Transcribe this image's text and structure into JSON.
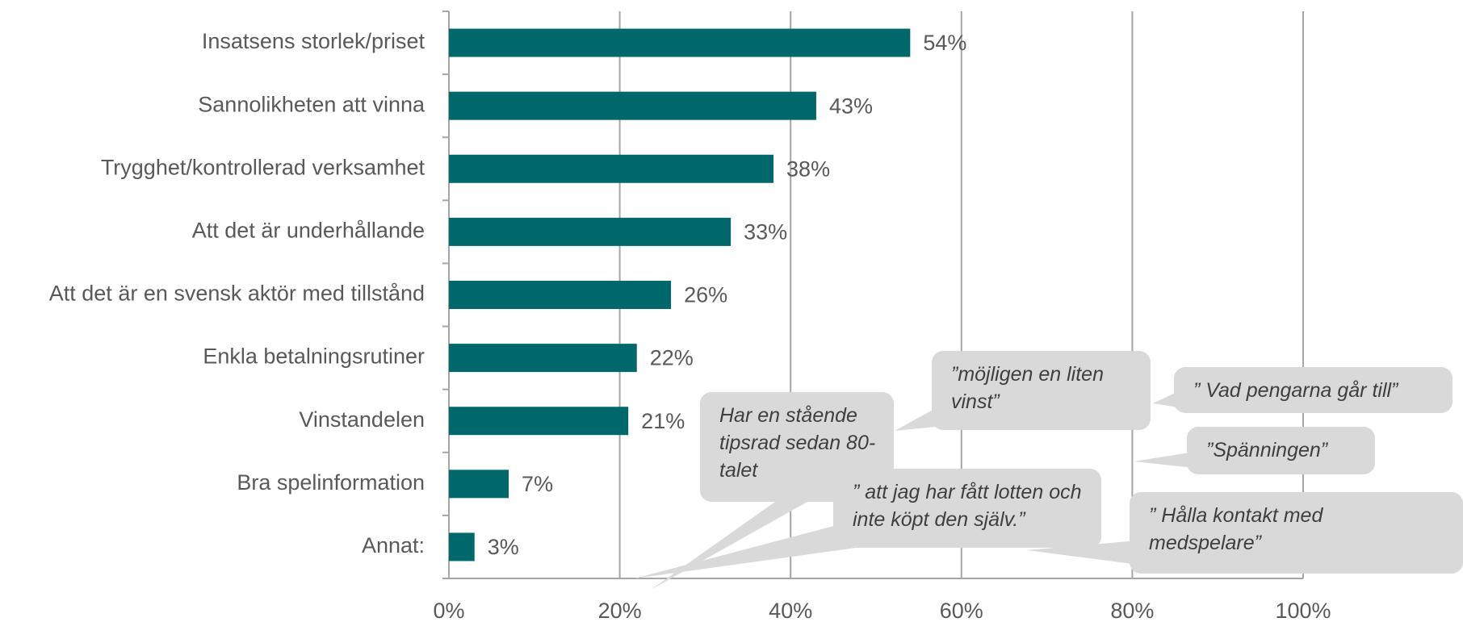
{
  "chart_data": {
    "type": "bar",
    "orientation": "horizontal",
    "categories": [
      "Insatsens storlek/priset",
      "Sannolikheten att vinna",
      "Trygghet/kontrollerad verksamhet",
      "Att det är underhållande",
      "Att det är en svensk aktör med tillstånd",
      "Enkla betalningsrutiner",
      "Vinstandelen",
      "Bra spelinformation",
      "Annat:"
    ],
    "values": [
      54,
      43,
      38,
      33,
      26,
      22,
      21,
      7,
      3
    ],
    "value_labels": [
      "54%",
      "43%",
      "38%",
      "33%",
      "26%",
      "22%",
      "21%",
      "7%",
      "3%"
    ],
    "color": "#00686a",
    "xlim": [
      0,
      100
    ],
    "xticks": [
      {
        "value": 0,
        "label": "0%"
      },
      {
        "value": 20,
        "label": "20%"
      },
      {
        "value": 40,
        "label": "40%"
      },
      {
        "value": 60,
        "label": "60%"
      },
      {
        "value": 80,
        "label": "80%"
      },
      {
        "value": 100,
        "label": "100%"
      }
    ],
    "grid": true,
    "annotations": [
      "Har en stående tipsrad sedan 80-talet",
      "”möjligen en liten vinst”",
      "” Vad pengarna går till”",
      "”Spänningen”",
      "” att jag har fått lotten och inte köpt den själv.”",
      "” Hålla kontakt med medspelare”"
    ]
  }
}
